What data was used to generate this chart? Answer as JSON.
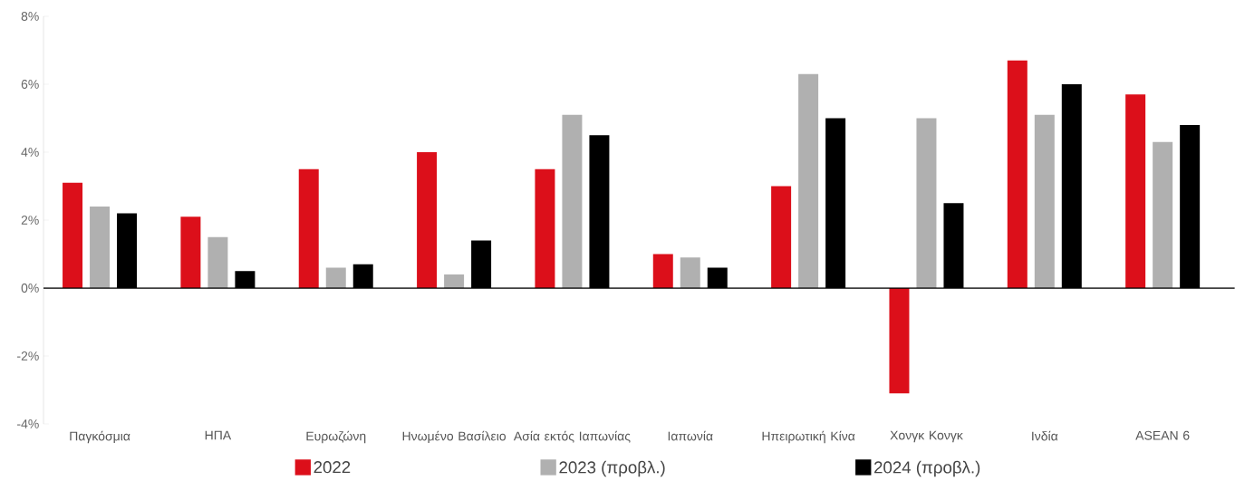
{
  "chart_data": {
    "type": "bar",
    "categories": [
      "Παγκόσμια",
      "ΗΠΑ",
      "Ευρωζώνη",
      "Ηνωμένο Βασίλειο",
      "Ασία εκτός Ιαπωνίας",
      "Ιαπωνία",
      "Ηπειρωτική Κίνα",
      "Χονγκ Κονγκ",
      "Ινδία",
      "ASEAN 6"
    ],
    "series": [
      {
        "name": "2022",
        "color": "#dc0f1a",
        "values": [
          3.1,
          2.1,
          3.5,
          4.0,
          3.5,
          1.0,
          3.0,
          -3.1,
          6.7,
          5.7
        ]
      },
      {
        "name": "2023 (προβλ.)",
        "color": "#b0b0b0",
        "values": [
          2.4,
          1.5,
          0.6,
          0.4,
          5.1,
          0.9,
          6.3,
          5.0,
          5.1,
          4.3
        ]
      },
      {
        "name": "2024 (προβλ.)",
        "color": "#000000",
        "values": [
          2.2,
          0.5,
          0.7,
          1.4,
          4.5,
          0.6,
          5.0,
          2.5,
          6.0,
          4.8
        ]
      }
    ],
    "ylim": [
      -4,
      8
    ],
    "yticks": [
      {
        "value": -4,
        "label": "-4%"
      },
      {
        "value": -2,
        "label": "-2%"
      },
      {
        "value": 0,
        "label": "0%"
      },
      {
        "value": 2,
        "label": "2%"
      },
      {
        "value": 4,
        "label": "4%"
      },
      {
        "value": 6,
        "label": "6%"
      },
      {
        "value": 8,
        "label": "8%"
      }
    ],
    "legend": "bottom"
  }
}
